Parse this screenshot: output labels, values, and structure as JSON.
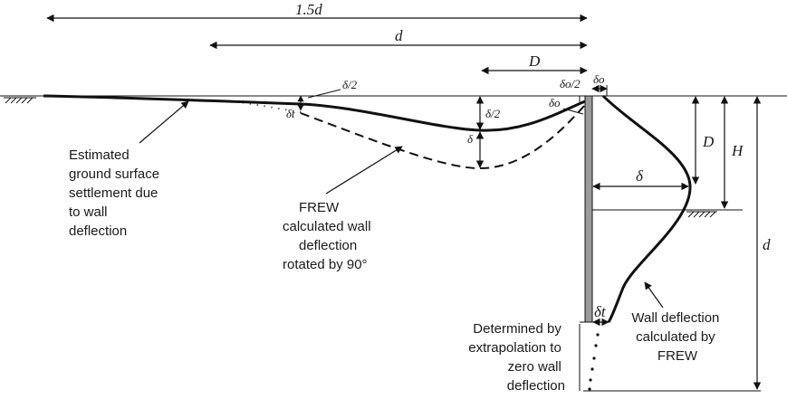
{
  "dimensions": {
    "span_15d": "1.5d",
    "span_d_top": "d",
    "span_D_top": "D",
    "wall_D": "D",
    "wall_H": "H",
    "wall_d": "d"
  },
  "symbols": {
    "delta": "δ",
    "delta_half": "δ/2",
    "delta_half_left": "δ/2",
    "delta_t_left": "δt",
    "delta_o": "δo",
    "delta_o_half": "δo/2",
    "delta_o_left": "δo",
    "delta_t": "δt",
    "delta_wall": "δ"
  },
  "labels": {
    "ground_settlement": [
      "Estimated",
      "ground surface",
      "settlement due",
      "to wall",
      "deflection"
    ],
    "frew_rotated": [
      "FREW",
      "calculated wall",
      "deflection",
      "rotated by 90°"
    ],
    "extrapolation": [
      "Determined by",
      "extrapolation to",
      "zero wall",
      "deflection"
    ],
    "wall_deflection": [
      "Wall deflection",
      "calculated by",
      "FREW"
    ]
  },
  "colors": {
    "line": "#111111",
    "wall_fill": "#9a9a9a"
  }
}
